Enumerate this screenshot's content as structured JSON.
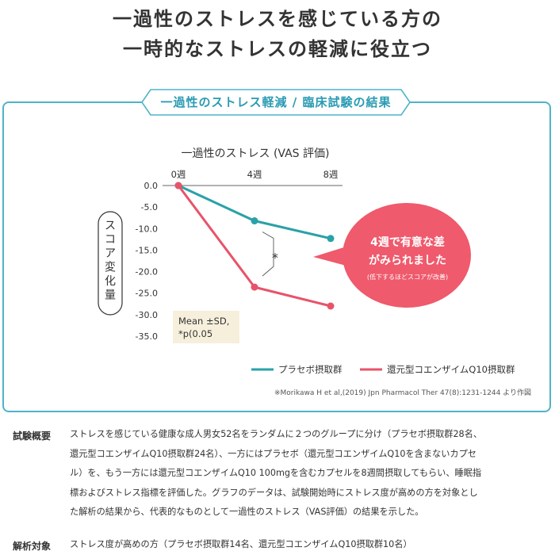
{
  "headline": {
    "line1": "一過性のストレスを感じている方の",
    "line2": "一時的なストレスの軽減に役立つ"
  },
  "panel": {
    "title": "一過性のストレス軽減 / 臨床試験の結果",
    "source": "※Morikawa H et al,(2019) Jpn Pharmacol Ther 47(8):1231-1244 より作図"
  },
  "colors": {
    "accent": "#4fb3c8",
    "placebo": "#2aa1a8",
    "coq10": "#e8536a",
    "callout": "#ef5a6c",
    "stats_box": "#f6efdc"
  },
  "chart_data": {
    "type": "line",
    "title": "一過性のストレス (VAS 評価)",
    "ylabel": "スコア変化量",
    "x": [
      "0週",
      "4週",
      "8週"
    ],
    "ylim": [
      -35,
      0
    ],
    "yticks": [
      "0.0",
      "-5.0",
      "-10.0",
      "-15.0",
      "-20.0",
      "-25.0",
      "-30.0",
      "-35.0"
    ],
    "series": [
      {
        "name": "プラセボ摂取群",
        "values": [
          0,
          -8.2,
          -12.3
        ],
        "color": "#2aa1a8"
      },
      {
        "name": "還元型コエンザイムQ10摂取群",
        "values": [
          0,
          -23.6,
          -28.0
        ],
        "color": "#e8536a"
      }
    ],
    "significance_mark": "*",
    "stats_note": [
      "Mean ±SD,",
      "*p(0.05"
    ],
    "callout": {
      "line1": "4週で有意な差",
      "line2": "がみられました",
      "note": "(低下するほどスコアが改善)"
    },
    "legend_position": "bottom-right",
    "grid": false
  },
  "info": [
    {
      "label": "試験概要",
      "lines": [
        "ストレスを感じている健康な成人男女52名をランダムに２つのグループに分け（プラセボ摂取群28名、",
        "還元型コエンザイムQ10摂取群24名）、一方にはプラセボ（還元型コエンザイムQ10を含まないカプセ",
        "ル）を、もう一方には還元型コエンザイムQ10 100mgを含むカプセルを8週間摂取してもらい、睡眠指",
        "標およびストレス指標を評価した。グラフのデータは、試験開始時にストレス度が高めの方を対象とし",
        "た解析の結果から、代表的なものとして一過性のストレス（VAS評価）の結果を示した。"
      ]
    },
    {
      "label": "解析対象",
      "lines": [
        "ストレス度が高めの方（プラセボ摂取群14名、還元型コエンザイムQ10摂取群10名）"
      ]
    }
  ]
}
